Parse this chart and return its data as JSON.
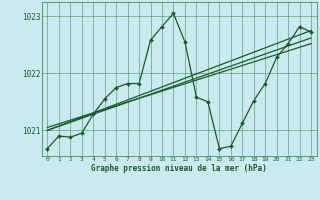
{
  "title": "Graphe pression niveau de la mer (hPa)",
  "bg_color": "#c8eaf0",
  "grid_color": "#4a9060",
  "line_color": "#1a5c28",
  "xlim": [
    -0.5,
    23.5
  ],
  "ylim": [
    1020.55,
    1023.25
  ],
  "yticks": [
    1021,
    1022,
    1023
  ],
  "xticks": [
    0,
    1,
    2,
    3,
    4,
    5,
    6,
    7,
    8,
    9,
    10,
    11,
    12,
    13,
    14,
    15,
    16,
    17,
    18,
    19,
    20,
    21,
    22,
    23
  ],
  "line_main": {
    "x": [
      0,
      1,
      2,
      3,
      4,
      5,
      6,
      7,
      8,
      9,
      10,
      11,
      12,
      13,
      14,
      15,
      16,
      17,
      18,
      19,
      20,
      21,
      22,
      23
    ],
    "y": [
      1020.68,
      1020.9,
      1020.88,
      1020.95,
      1021.28,
      1021.55,
      1021.75,
      1021.82,
      1021.82,
      1022.58,
      1022.82,
      1023.05,
      1022.55,
      1021.58,
      1021.5,
      1020.68,
      1020.72,
      1021.12,
      1021.52,
      1021.82,
      1022.28,
      1022.52,
      1022.82,
      1022.72
    ]
  },
  "line_trend1": {
    "x": [
      0,
      23
    ],
    "y": [
      1021.0,
      1022.75
    ]
  },
  "line_trend2": {
    "x": [
      0,
      23
    ],
    "y": [
      1021.0,
      1022.62
    ]
  },
  "line_trend3": {
    "x": [
      0,
      23
    ],
    "y": [
      1021.05,
      1022.52
    ]
  }
}
